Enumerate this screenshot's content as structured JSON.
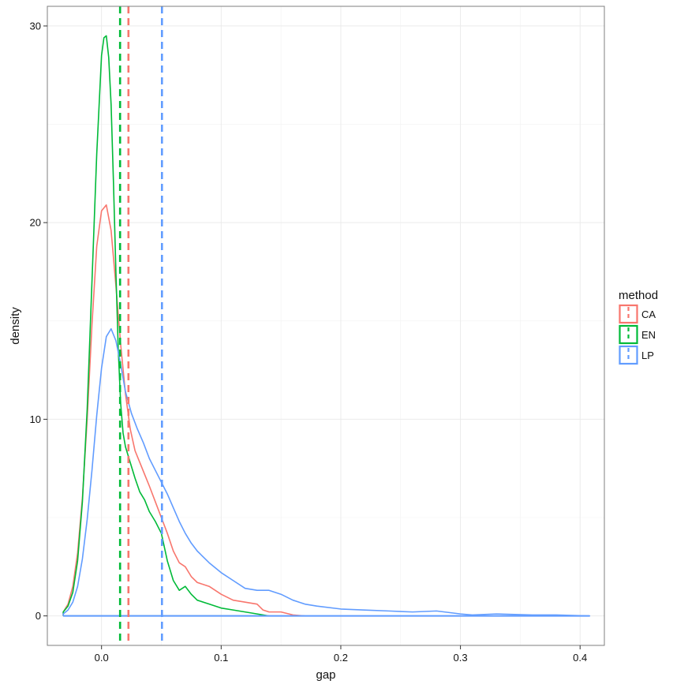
{
  "chart_data": {
    "type": "line",
    "subtype": "density",
    "title": "",
    "xlabel": "gap",
    "ylabel": "density",
    "xlim": [
      -0.0453,
      0.4203
    ],
    "ylim": [
      -1.5,
      31.0
    ],
    "x_ticks": [
      0.0,
      0.1,
      0.2,
      0.3,
      0.4
    ],
    "x_tick_labels": [
      "0.0",
      "0.1",
      "0.2",
      "0.3",
      "0.4"
    ],
    "y_ticks": [
      0,
      10,
      20,
      30
    ],
    "y_tick_labels": [
      "0",
      "10",
      "20",
      "30"
    ],
    "grid": true,
    "theme": "bw",
    "legend": {
      "title": "method",
      "position": "right",
      "entries": [
        "CA",
        "EN",
        "LP"
      ]
    },
    "colors": {
      "CA": "#F8766D",
      "EN": "#00BA38",
      "LP": "#619CFF"
    },
    "series": [
      {
        "name": "CA",
        "color": "#F8766D",
        "x": [
          -0.032,
          -0.028,
          -0.024,
          -0.02,
          -0.016,
          -0.012,
          -0.008,
          -0.004,
          0.0,
          0.004,
          0.008,
          0.012,
          0.016,
          0.02,
          0.024,
          0.028,
          0.032,
          0.036,
          0.04,
          0.045,
          0.05,
          0.055,
          0.06,
          0.065,
          0.07,
          0.075,
          0.08,
          0.09,
          0.1,
          0.11,
          0.12,
          0.13,
          0.135,
          0.14,
          0.15,
          0.16,
          0.17
        ],
        "y": [
          0.2,
          0.6,
          1.5,
          3.2,
          6.0,
          10.0,
          14.8,
          18.8,
          20.6,
          20.9,
          19.6,
          16.8,
          13.8,
          11.3,
          9.5,
          8.4,
          7.8,
          7.2,
          6.6,
          5.8,
          5.0,
          4.2,
          3.3,
          2.7,
          2.5,
          2.0,
          1.7,
          1.5,
          1.1,
          0.8,
          0.7,
          0.6,
          0.3,
          0.2,
          0.2,
          0.05,
          0.0
        ]
      },
      {
        "name": "EN",
        "color": "#00BA38",
        "x": [
          -0.032,
          -0.028,
          -0.024,
          -0.02,
          -0.016,
          -0.012,
          -0.008,
          -0.004,
          0.0,
          0.002,
          0.004,
          0.006,
          0.008,
          0.01,
          0.012,
          0.014,
          0.016,
          0.018,
          0.02,
          0.024,
          0.028,
          0.032,
          0.036,
          0.04,
          0.045,
          0.05,
          0.055,
          0.06,
          0.065,
          0.07,
          0.075,
          0.08,
          0.09,
          0.1,
          0.11,
          0.12,
          0.13,
          0.14
        ],
        "y": [
          0.2,
          0.5,
          1.2,
          2.8,
          5.8,
          10.5,
          17.0,
          23.5,
          28.5,
          29.4,
          29.5,
          28.4,
          26.0,
          22.0,
          17.5,
          13.5,
          10.8,
          9.3,
          8.6,
          7.8,
          7.0,
          6.3,
          5.9,
          5.3,
          4.8,
          4.2,
          2.8,
          1.8,
          1.3,
          1.5,
          1.1,
          0.8,
          0.6,
          0.4,
          0.3,
          0.2,
          0.1,
          0.0
        ]
      },
      {
        "name": "LP",
        "color": "#619CFF",
        "x": [
          -0.032,
          -0.028,
          -0.024,
          -0.02,
          -0.016,
          -0.012,
          -0.008,
          -0.004,
          0.0,
          0.004,
          0.008,
          0.012,
          0.016,
          0.02,
          0.025,
          0.03,
          0.035,
          0.04,
          0.045,
          0.05,
          0.055,
          0.06,
          0.065,
          0.07,
          0.075,
          0.08,
          0.09,
          0.1,
          0.11,
          0.12,
          0.13,
          0.14,
          0.15,
          0.16,
          0.17,
          0.18,
          0.2,
          0.22,
          0.24,
          0.26,
          0.28,
          0.3,
          0.31,
          0.33,
          0.36,
          0.38,
          0.408
        ],
        "y": [
          0.1,
          0.3,
          0.7,
          1.5,
          2.9,
          4.9,
          7.4,
          10.2,
          12.6,
          14.2,
          14.6,
          14.0,
          12.8,
          11.4,
          10.3,
          9.5,
          8.8,
          8.0,
          7.4,
          6.8,
          6.2,
          5.5,
          4.8,
          4.2,
          3.7,
          3.3,
          2.7,
          2.2,
          1.8,
          1.4,
          1.3,
          1.3,
          1.1,
          0.8,
          0.6,
          0.5,
          0.35,
          0.3,
          0.25,
          0.2,
          0.25,
          0.1,
          0.05,
          0.1,
          0.05,
          0.05,
          0.0
        ]
      }
    ],
    "vlines": [
      {
        "series": "EN",
        "x": 0.0155,
        "color": "#00BA38",
        "dash": "dashed"
      },
      {
        "series": "CA",
        "x": 0.0225,
        "color": "#F8766D",
        "dash": "dashed"
      },
      {
        "series": "LP",
        "x": 0.0505,
        "color": "#619CFF",
        "dash": "dashed"
      }
    ]
  }
}
